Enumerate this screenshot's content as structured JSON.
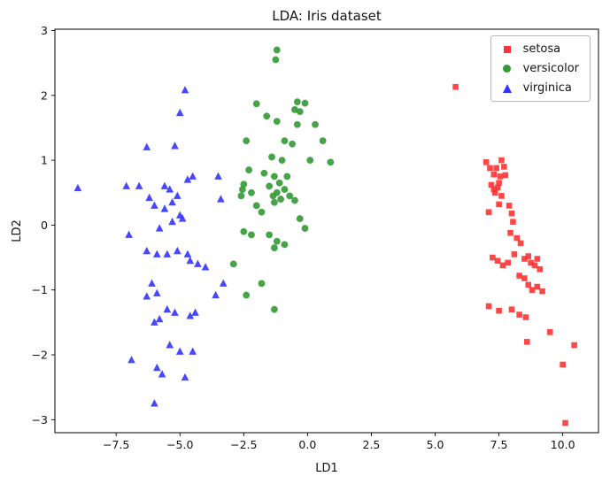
{
  "chart_data": {
    "type": "scatter",
    "title": "LDA: Iris dataset",
    "xlabel": "LD1",
    "ylabel": "LD2",
    "xlim": [
      -9.9,
      11.4
    ],
    "ylim": [
      -3.2,
      3.02
    ],
    "grid": false,
    "legend_position": "upper right",
    "xticks": [
      {
        "v": -7.5,
        "label": "−7.5"
      },
      {
        "v": -5.0,
        "label": "−5.0"
      },
      {
        "v": -2.5,
        "label": "−2.5"
      },
      {
        "v": 0.0,
        "label": "0.0"
      },
      {
        "v": 2.5,
        "label": "2.5"
      },
      {
        "v": 5.0,
        "label": "5.0"
      },
      {
        "v": 7.5,
        "label": "7.5"
      },
      {
        "v": 10.0,
        "label": "10.0"
      }
    ],
    "yticks": [
      {
        "v": -3,
        "label": "−3"
      },
      {
        "v": -2,
        "label": "−2"
      },
      {
        "v": -1,
        "label": "−1"
      },
      {
        "v": 0,
        "label": "0"
      },
      {
        "v": 1,
        "label": "1"
      },
      {
        "v": 2,
        "label": "2"
      },
      {
        "v": 3,
        "label": "3"
      }
    ],
    "series": [
      {
        "name": "setosa",
        "marker": "square",
        "color": "#ff3333",
        "points": [
          [
            5.8,
            2.13
          ],
          [
            7.0,
            0.97
          ],
          [
            7.15,
            0.88
          ],
          [
            7.3,
            0.78
          ],
          [
            7.4,
            0.88
          ],
          [
            7.2,
            0.62
          ],
          [
            7.3,
            0.55
          ],
          [
            7.35,
            0.5
          ],
          [
            7.45,
            0.58
          ],
          [
            7.5,
            0.65
          ],
          [
            7.55,
            0.75
          ],
          [
            7.6,
            1.0
          ],
          [
            7.7,
            0.9
          ],
          [
            7.75,
            0.77
          ],
          [
            7.6,
            0.45
          ],
          [
            7.5,
            0.32
          ],
          [
            7.9,
            0.3
          ],
          [
            8.0,
            0.18
          ],
          [
            8.05,
            0.05
          ],
          [
            7.95,
            -0.12
          ],
          [
            8.2,
            -0.2
          ],
          [
            8.35,
            -0.28
          ],
          [
            8.1,
            -0.45
          ],
          [
            7.1,
            0.2
          ],
          [
            7.25,
            -0.5
          ],
          [
            7.45,
            -0.55
          ],
          [
            7.65,
            -0.62
          ],
          [
            7.85,
            -0.58
          ],
          [
            8.5,
            -0.52
          ],
          [
            8.65,
            -0.48
          ],
          [
            8.75,
            -0.58
          ],
          [
            8.9,
            -0.62
          ],
          [
            9.0,
            -0.52
          ],
          [
            9.1,
            -0.68
          ],
          [
            8.3,
            -0.78
          ],
          [
            8.5,
            -0.82
          ],
          [
            8.65,
            -0.92
          ],
          [
            8.8,
            -1.0
          ],
          [
            9.0,
            -0.95
          ],
          [
            9.2,
            -1.02
          ],
          [
            7.1,
            -1.25
          ],
          [
            7.5,
            -1.32
          ],
          [
            8.0,
            -1.3
          ],
          [
            8.3,
            -1.38
          ],
          [
            8.55,
            -1.42
          ],
          [
            8.6,
            -1.8
          ],
          [
            9.5,
            -1.65
          ],
          [
            10.0,
            -2.15
          ],
          [
            10.45,
            -1.85
          ],
          [
            10.1,
            -3.05
          ]
        ]
      },
      {
        "name": "versicolor",
        "marker": "circle",
        "color": "#339933",
        "points": [
          [
            -1.2,
            2.7
          ],
          [
            -1.25,
            2.55
          ],
          [
            -2.0,
            1.87
          ],
          [
            -0.4,
            1.9
          ],
          [
            -0.1,
            1.88
          ],
          [
            -0.3,
            1.75
          ],
          [
            -0.5,
            1.78
          ],
          [
            -1.6,
            1.68
          ],
          [
            -1.2,
            1.6
          ],
          [
            -0.4,
            1.55
          ],
          [
            0.3,
            1.55
          ],
          [
            -2.4,
            1.3
          ],
          [
            -0.9,
            1.3
          ],
          [
            -0.6,
            1.25
          ],
          [
            0.6,
            1.3
          ],
          [
            -1.4,
            1.05
          ],
          [
            -1.0,
            1.0
          ],
          [
            0.1,
            1.0
          ],
          [
            0.9,
            0.97
          ],
          [
            -2.3,
            0.85
          ],
          [
            -1.7,
            0.8
          ],
          [
            -1.3,
            0.75
          ],
          [
            -0.8,
            0.75
          ],
          [
            -1.1,
            0.65
          ],
          [
            -1.5,
            0.6
          ],
          [
            -0.9,
            0.55
          ],
          [
            -1.2,
            0.5
          ],
          [
            -1.35,
            0.45
          ],
          [
            -0.7,
            0.45
          ],
          [
            -1.05,
            0.4
          ],
          [
            -1.3,
            0.35
          ],
          [
            -0.5,
            0.38
          ],
          [
            -2.5,
            0.63
          ],
          [
            -2.55,
            0.55
          ],
          [
            -2.2,
            0.5
          ],
          [
            -2.6,
            0.45
          ],
          [
            -2.0,
            0.3
          ],
          [
            -1.8,
            0.2
          ],
          [
            -0.3,
            0.1
          ],
          [
            -0.1,
            -0.05
          ],
          [
            -2.5,
            -0.1
          ],
          [
            -2.2,
            -0.15
          ],
          [
            -1.5,
            -0.15
          ],
          [
            -1.2,
            -0.25
          ],
          [
            -0.9,
            -0.3
          ],
          [
            -1.3,
            -0.35
          ],
          [
            -2.9,
            -0.6
          ],
          [
            -1.8,
            -0.9
          ],
          [
            -2.4,
            -1.08
          ],
          [
            -1.3,
            -1.3
          ]
        ]
      },
      {
        "name": "virginica",
        "marker": "triangle",
        "color": "#3333ff",
        "points": [
          [
            -9.0,
            0.57
          ],
          [
            -7.1,
            0.6
          ],
          [
            -6.6,
            0.6
          ],
          [
            -4.8,
            2.08
          ],
          [
            -5.0,
            1.73
          ],
          [
            -5.2,
            1.22
          ],
          [
            -6.3,
            1.2
          ],
          [
            -5.6,
            0.6
          ],
          [
            -5.4,
            0.55
          ],
          [
            -5.1,
            0.45
          ],
          [
            -5.3,
            0.35
          ],
          [
            -4.7,
            0.7
          ],
          [
            -4.5,
            0.75
          ],
          [
            -3.5,
            0.75
          ],
          [
            -3.4,
            0.4
          ],
          [
            -5.6,
            0.25
          ],
          [
            -5.0,
            0.15
          ],
          [
            -4.9,
            0.1
          ],
          [
            -5.3,
            0.05
          ],
          [
            -5.8,
            -0.05
          ],
          [
            -6.0,
            0.3
          ],
          [
            -6.2,
            0.42
          ],
          [
            -7.0,
            -0.15
          ],
          [
            -6.3,
            -0.4
          ],
          [
            -5.9,
            -0.45
          ],
          [
            -5.5,
            -0.45
          ],
          [
            -5.1,
            -0.4
          ],
          [
            -4.7,
            -0.45
          ],
          [
            -4.6,
            -0.55
          ],
          [
            -4.3,
            -0.6
          ],
          [
            -4.0,
            -0.65
          ],
          [
            -3.3,
            -0.9
          ],
          [
            -6.1,
            -0.9
          ],
          [
            -5.9,
            -1.05
          ],
          [
            -6.3,
            -1.1
          ],
          [
            -3.6,
            -1.08
          ],
          [
            -5.5,
            -1.3
          ],
          [
            -5.2,
            -1.35
          ],
          [
            -5.8,
            -1.45
          ],
          [
            -6.0,
            -1.5
          ],
          [
            -4.6,
            -1.4
          ],
          [
            -4.4,
            -1.35
          ],
          [
            -5.4,
            -1.85
          ],
          [
            -5.0,
            -1.95
          ],
          [
            -4.5,
            -1.95
          ],
          [
            -6.9,
            -2.08
          ],
          [
            -5.9,
            -2.2
          ],
          [
            -5.7,
            -2.3
          ],
          [
            -4.8,
            -2.35
          ],
          [
            -6.0,
            -2.75
          ]
        ]
      }
    ]
  }
}
